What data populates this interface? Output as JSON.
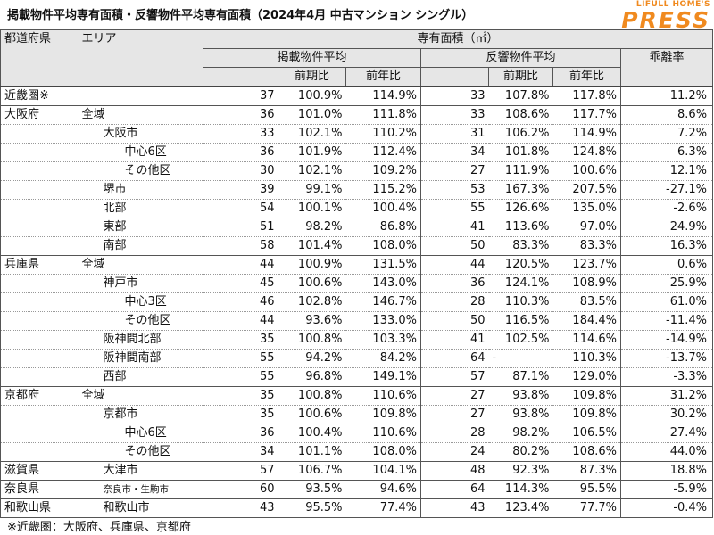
{
  "title": "掲載物件平均専有面積・反響物件平均専有面積（2024年4月 中古マンション シングル）",
  "brand": {
    "top": "LIFULL HOME'S",
    "main": "PRESS"
  },
  "header": {
    "pref": "都道府県",
    "area": "エリア",
    "group": "専有面積（㎡）",
    "listing": "掲載物件平均",
    "response": "反響物件平均",
    "qoq": "前期比",
    "yoy": "前年比",
    "gap": "乖離率"
  },
  "rows": [
    {
      "pref": "近畿圏※",
      "area": "",
      "lv": 0,
      "l_avg": "37",
      "l_qoq": "100.9%",
      "l_yoy": "114.9%",
      "r_avg": "33",
      "r_qoq": "107.8%",
      "r_yoy": "117.8%",
      "gap": "11.2%"
    },
    {
      "pref": "大阪府",
      "area": "全域",
      "lv": 1,
      "l_avg": "36",
      "l_qoq": "101.0%",
      "l_yoy": "111.8%",
      "r_avg": "33",
      "r_qoq": "108.6%",
      "r_yoy": "117.7%",
      "gap": "8.6%"
    },
    {
      "pref": "",
      "area": "大阪市",
      "lv": 2,
      "l_avg": "33",
      "l_qoq": "102.1%",
      "l_yoy": "110.2%",
      "r_avg": "31",
      "r_qoq": "106.2%",
      "r_yoy": "114.9%",
      "gap": "7.2%"
    },
    {
      "pref": "",
      "area": "中心6区",
      "lv": 3,
      "l_avg": "36",
      "l_qoq": "101.9%",
      "l_yoy": "112.4%",
      "r_avg": "34",
      "r_qoq": "101.8%",
      "r_yoy": "124.8%",
      "gap": "6.3%"
    },
    {
      "pref": "",
      "area": "その他区",
      "lv": 3,
      "l_avg": "30",
      "l_qoq": "102.1%",
      "l_yoy": "109.2%",
      "r_avg": "27",
      "r_qoq": "111.9%",
      "r_yoy": "100.6%",
      "gap": "12.1%"
    },
    {
      "pref": "",
      "area": "堺市",
      "lv": 2,
      "l_avg": "39",
      "l_qoq": "99.1%",
      "l_yoy": "115.2%",
      "r_avg": "53",
      "r_qoq": "167.3%",
      "r_yoy": "207.5%",
      "gap": "-27.1%"
    },
    {
      "pref": "",
      "area": "北部",
      "lv": 2,
      "l_avg": "54",
      "l_qoq": "100.1%",
      "l_yoy": "100.4%",
      "r_avg": "55",
      "r_qoq": "126.6%",
      "r_yoy": "135.0%",
      "gap": "-2.6%"
    },
    {
      "pref": "",
      "area": "東部",
      "lv": 2,
      "l_avg": "51",
      "l_qoq": "98.2%",
      "l_yoy": "86.8%",
      "r_avg": "41",
      "r_qoq": "113.6%",
      "r_yoy": "97.0%",
      "gap": "24.9%"
    },
    {
      "pref": "",
      "area": "南部",
      "lv": 2,
      "l_avg": "58",
      "l_qoq": "101.4%",
      "l_yoy": "108.0%",
      "r_avg": "50",
      "r_qoq": "83.3%",
      "r_yoy": "83.3%",
      "gap": "16.3%"
    },
    {
      "pref": "兵庫県",
      "area": "全域",
      "lv": 1,
      "l_avg": "44",
      "l_qoq": "100.9%",
      "l_yoy": "131.5%",
      "r_avg": "44",
      "r_qoq": "120.5%",
      "r_yoy": "123.7%",
      "gap": "0.6%"
    },
    {
      "pref": "",
      "area": "神戸市",
      "lv": 2,
      "l_avg": "45",
      "l_qoq": "100.6%",
      "l_yoy": "143.0%",
      "r_avg": "36",
      "r_qoq": "124.1%",
      "r_yoy": "108.9%",
      "gap": "25.9%"
    },
    {
      "pref": "",
      "area": "中心3区",
      "lv": 3,
      "l_avg": "46",
      "l_qoq": "102.8%",
      "l_yoy": "146.7%",
      "r_avg": "28",
      "r_qoq": "110.3%",
      "r_yoy": "83.5%",
      "gap": "61.0%"
    },
    {
      "pref": "",
      "area": "その他区",
      "lv": 3,
      "l_avg": "44",
      "l_qoq": "93.6%",
      "l_yoy": "133.0%",
      "r_avg": "50",
      "r_qoq": "116.5%",
      "r_yoy": "184.4%",
      "gap": "-11.4%"
    },
    {
      "pref": "",
      "area": "阪神間北部",
      "lv": 2,
      "l_avg": "35",
      "l_qoq": "100.8%",
      "l_yoy": "103.3%",
      "r_avg": "41",
      "r_qoq": "102.5%",
      "r_yoy": "114.6%",
      "gap": "-14.9%"
    },
    {
      "pref": "",
      "area": "阪神間南部",
      "lv": 2,
      "l_avg": "55",
      "l_qoq": "94.2%",
      "l_yoy": "84.2%",
      "r_avg": "64",
      "r_qoq": "-",
      "r_yoy": "110.3%",
      "gap": "-13.7%"
    },
    {
      "pref": "",
      "area": "西部",
      "lv": 2,
      "l_avg": "55",
      "l_qoq": "96.8%",
      "l_yoy": "149.1%",
      "r_avg": "57",
      "r_qoq": "87.1%",
      "r_yoy": "129.0%",
      "gap": "-3.3%"
    },
    {
      "pref": "京都府",
      "area": "全域",
      "lv": 1,
      "l_avg": "35",
      "l_qoq": "100.8%",
      "l_yoy": "110.6%",
      "r_avg": "27",
      "r_qoq": "93.8%",
      "r_yoy": "109.8%",
      "gap": "31.2%"
    },
    {
      "pref": "",
      "area": "京都市",
      "lv": 2,
      "l_avg": "35",
      "l_qoq": "100.6%",
      "l_yoy": "109.8%",
      "r_avg": "27",
      "r_qoq": "93.8%",
      "r_yoy": "109.8%",
      "gap": "30.2%"
    },
    {
      "pref": "",
      "area": "中心6区",
      "lv": 3,
      "l_avg": "36",
      "l_qoq": "100.4%",
      "l_yoy": "110.6%",
      "r_avg": "28",
      "r_qoq": "98.2%",
      "r_yoy": "106.5%",
      "gap": "27.4%"
    },
    {
      "pref": "",
      "area": "その他区",
      "lv": 3,
      "l_avg": "34",
      "l_qoq": "101.1%",
      "l_yoy": "108.0%",
      "r_avg": "24",
      "r_qoq": "80.2%",
      "r_yoy": "108.6%",
      "gap": "44.0%"
    },
    {
      "pref": "滋賀県",
      "area": "大津市",
      "lv": 2,
      "l_avg": "57",
      "l_qoq": "106.7%",
      "l_yoy": "104.1%",
      "r_avg": "48",
      "r_qoq": "92.3%",
      "r_yoy": "87.3%",
      "gap": "18.8%"
    },
    {
      "pref": "奈良県",
      "area": "奈良市・生駒市",
      "lv": 2,
      "small": true,
      "l_avg": "60",
      "l_qoq": "93.5%",
      "l_yoy": "94.6%",
      "r_avg": "64",
      "r_qoq": "114.3%",
      "r_yoy": "95.5%",
      "gap": "-5.9%"
    },
    {
      "pref": "和歌山県",
      "area": "和歌山市",
      "lv": 2,
      "l_avg": "43",
      "l_qoq": "95.5%",
      "l_yoy": "77.4%",
      "r_avg": "43",
      "r_qoq": "123.4%",
      "r_yoy": "77.7%",
      "gap": "-0.4%"
    }
  ],
  "note": "※近畿圏：大阪府、兵庫県、京都府"
}
